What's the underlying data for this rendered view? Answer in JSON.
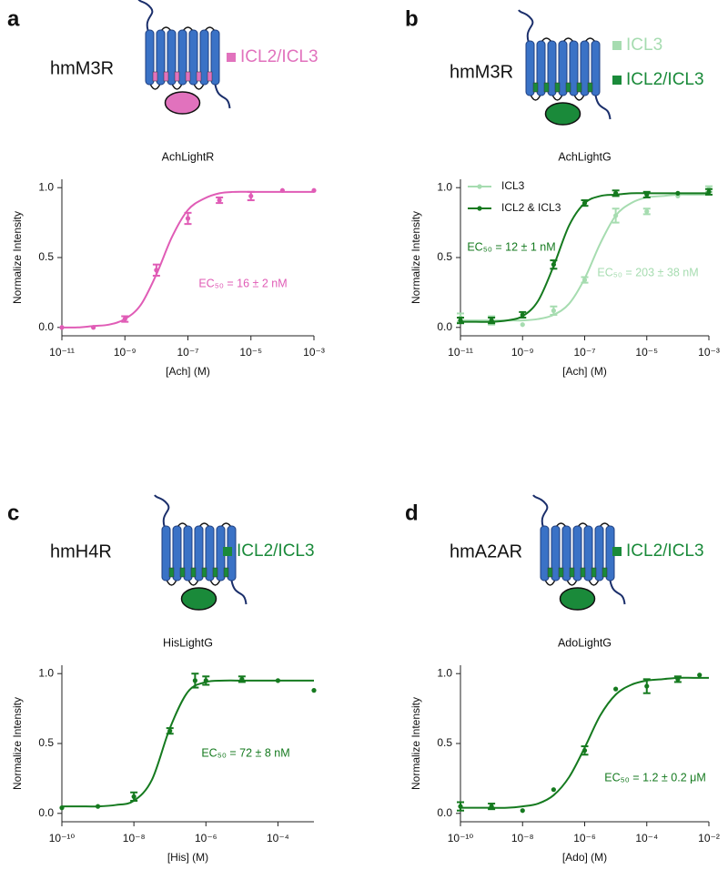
{
  "panels": [
    {
      "label": "a",
      "construct": "hmM3R",
      "diagram_legend": [
        {
          "label": "ICL2/ICL3",
          "color": "#e172bd"
        }
      ]
    },
    {
      "label": "b",
      "construct": "hmM3R",
      "diagram_legend": [
        {
          "label": "ICL3",
          "color": "#a6dcb0"
        },
        {
          "label": "ICL2/ICL3",
          "color": "#1a8a3a"
        }
      ]
    },
    {
      "label": "c",
      "construct": "hmH4R",
      "diagram_legend": [
        {
          "label": "ICL2/ICL3",
          "color": "#1a8a3a"
        }
      ]
    },
    {
      "label": "d",
      "construct": "hmA2AR",
      "diagram_legend": [
        {
          "label": "ICL2/ICL3",
          "color": "#1a8a3a"
        }
      ]
    }
  ],
  "chart_data": [
    {
      "type": "line",
      "title": "AchLightR",
      "xlabel": "[Ach] (M)",
      "ylabel": "Normalize Intensity",
      "log_x": true,
      "xlim": [
        1e-11,
        0.001
      ],
      "xticks": [
        {
          "value": 1e-11,
          "label": "10⁻¹¹"
        },
        {
          "value": 1e-09,
          "label": "10⁻⁹"
        },
        {
          "value": 1e-07,
          "label": "10⁻⁷"
        },
        {
          "value": 1e-05,
          "label": "10⁻⁵"
        },
        {
          "value": 0.001,
          "label": "10⁻³"
        }
      ],
      "ylim": [
        -0.06,
        1.06
      ],
      "yticks": [
        {
          "value": 0,
          "label": "0.0"
        },
        0.5,
        {
          "value": 1,
          "label": "1.0"
        }
      ],
      "series": [
        {
          "color": "#e05cb6",
          "x": [
            1e-11,
            1e-10,
            1e-09,
            1e-08,
            1e-07,
            1e-06,
            1e-05,
            0.0001,
            0.001
          ],
          "values": [
            0.0,
            0.0,
            0.06,
            0.41,
            0.78,
            0.91,
            0.94,
            0.98,
            0.98
          ],
          "errors": [
            null,
            null,
            0.02,
            0.04,
            0.04,
            0.02,
            0.03,
            null,
            null
          ],
          "fit_x": [
            1e-11,
            3.162e-11,
            1e-10,
            3.162e-10,
            1e-09,
            3.162e-09,
            1e-08,
            3.162e-08,
            1e-07,
            3.162e-07,
            1e-06,
            3.162e-06,
            1e-05,
            3.162e-05,
            0.0001,
            0.0003162,
            0.001
          ],
          "fit_values": [
            0.0,
            0.0,
            0.01,
            0.02,
            0.06,
            0.16,
            0.38,
            0.65,
            0.84,
            0.92,
            0.96,
            0.97,
            0.97,
            0.97,
            0.97,
            0.97,
            0.97
          ]
        }
      ],
      "annotations": [
        {
          "text": "EC₅₀ = 16 ± 2 nM",
          "color": "#e05cb6"
        }
      ]
    },
    {
      "type": "line",
      "title": "AchLightG",
      "xlabel": "[Ach] (M)",
      "ylabel": "Normalize Intensity",
      "log_x": true,
      "xlim": [
        1e-11,
        0.001
      ],
      "xticks": [
        {
          "value": 1e-11,
          "label": "10⁻¹¹"
        },
        {
          "value": 1e-09,
          "label": "10⁻⁹"
        },
        {
          "value": 1e-07,
          "label": "10⁻⁷"
        },
        {
          "value": 1e-05,
          "label": "10⁻⁵"
        },
        {
          "value": 0.001,
          "label": "10⁻³"
        }
      ],
      "ylim": [
        -0.06,
        1.06
      ],
      "yticks": [
        {
          "value": 0,
          "label": "0.0"
        },
        0.5,
        {
          "value": 1,
          "label": "1.0"
        }
      ],
      "legend": "upper left",
      "series": [
        {
          "name": "ICL3",
          "color": "#a6dcb0",
          "x": [
            1e-11,
            1e-10,
            1e-09,
            1e-08,
            1e-07,
            1e-06,
            1e-05,
            0.0001,
            0.001
          ],
          "values": [
            0.07,
            0.05,
            0.02,
            0.12,
            0.34,
            0.8,
            0.83,
            0.94,
            0.99
          ],
          "errors": [
            0.03,
            0.03,
            null,
            0.03,
            0.02,
            0.05,
            0.02,
            null,
            0.02
          ],
          "fit_x": [
            1e-11,
            3.162e-11,
            1e-10,
            3.162e-10,
            1e-09,
            3.162e-09,
            1e-08,
            3.162e-08,
            1e-07,
            3.162e-07,
            1e-06,
            3.162e-06,
            1e-05,
            3.162e-05,
            0.0001,
            0.0003162,
            0.001
          ],
          "fit_values": [
            0.05,
            0.05,
            0.05,
            0.05,
            0.05,
            0.06,
            0.09,
            0.17,
            0.35,
            0.6,
            0.8,
            0.89,
            0.93,
            0.94,
            0.95,
            0.95,
            0.95
          ]
        },
        {
          "name": "ICL2 & ICL3",
          "color": "#157a1f",
          "x": [
            1e-11,
            1e-10,
            1e-09,
            1e-08,
            1e-07,
            1e-06,
            1e-05,
            0.0001,
            0.001
          ],
          "values": [
            0.05,
            0.05,
            0.09,
            0.45,
            0.89,
            0.96,
            0.95,
            0.96,
            0.97
          ],
          "errors": [
            0.02,
            0.02,
            0.02,
            0.03,
            0.02,
            0.02,
            0.02,
            null,
            0.02
          ],
          "fit_x": [
            1e-11,
            3.162e-11,
            1e-10,
            3.162e-10,
            1e-09,
            3.162e-09,
            1e-08,
            3.162e-08,
            1e-07,
            3.162e-07,
            1e-06,
            3.162e-06,
            1e-05,
            3.162e-05,
            0.0001,
            0.0003162,
            0.001
          ],
          "fit_values": [
            0.04,
            0.04,
            0.04,
            0.05,
            0.08,
            0.19,
            0.44,
            0.73,
            0.89,
            0.94,
            0.95,
            0.96,
            0.96,
            0.96,
            0.96,
            0.96,
            0.96
          ]
        }
      ],
      "annotations": [
        {
          "text": "EC₅₀ = 12 ± 1 nM",
          "color": "#157a1f"
        },
        {
          "text": "EC₅₀ = 203 ± 38 nM",
          "color": "#a6dcb0"
        }
      ]
    },
    {
      "type": "line",
      "title": "HisLightG",
      "xlabel": "[His] (M)",
      "ylabel": "Normalize Intensity",
      "log_x": true,
      "xlim": [
        1e-10,
        0.001
      ],
      "xticks": [
        {
          "value": 1e-10,
          "label": "10⁻¹⁰"
        },
        {
          "value": 1e-08,
          "label": "10⁻⁸"
        },
        {
          "value": 1e-06,
          "label": "10⁻⁶"
        },
        {
          "value": 0.0001,
          "label": "10⁻⁴"
        }
      ],
      "ylim": [
        -0.06,
        1.06
      ],
      "yticks": [
        {
          "value": 0,
          "label": "0.0"
        },
        0.5,
        {
          "value": 1,
          "label": "1.0"
        }
      ],
      "series": [
        {
          "color": "#157a1f",
          "x": [
            1e-10,
            1e-09,
            1e-08,
            1e-07,
            5e-07,
            1e-06,
            1e-05,
            0.0001,
            0.001
          ],
          "values": [
            0.04,
            0.05,
            0.12,
            0.59,
            0.95,
            0.95,
            0.96,
            0.95,
            0.88
          ],
          "errors": [
            null,
            null,
            0.03,
            0.02,
            0.05,
            0.03,
            0.02,
            null,
            null
          ],
          "fit_x": [
            1e-10,
            3.162e-10,
            1e-09,
            3.162e-09,
            1e-08,
            3.162e-08,
            1e-07,
            3.162e-07,
            1e-06,
            3.162e-06,
            1e-05,
            3.162e-05,
            0.0001,
            0.0003162,
            0.001
          ],
          "fit_values": [
            0.05,
            0.05,
            0.05,
            0.06,
            0.09,
            0.24,
            0.61,
            0.87,
            0.94,
            0.95,
            0.95,
            0.95,
            0.95,
            0.95,
            0.95
          ]
        }
      ],
      "annotations": [
        {
          "text": "EC₅₀ = 72 ± 8 nM",
          "color": "#157a1f"
        }
      ]
    },
    {
      "type": "line",
      "title": "AdoLightG",
      "xlabel": "[Ado] (M)",
      "ylabel": "Normalize Intensity",
      "log_x": true,
      "xlim": [
        1e-10,
        0.01
      ],
      "xticks": [
        {
          "value": 1e-10,
          "label": "10⁻¹⁰"
        },
        {
          "value": 1e-08,
          "label": "10⁻⁸"
        },
        {
          "value": 1e-06,
          "label": "10⁻⁶"
        },
        {
          "value": 0.0001,
          "label": "10⁻⁴"
        },
        {
          "value": 0.01,
          "label": "10⁻²"
        }
      ],
      "ylim": [
        -0.06,
        1.06
      ],
      "yticks": [
        {
          "value": 0,
          "label": "0.0"
        },
        0.5,
        {
          "value": 1,
          "label": "1.0"
        }
      ],
      "series": [
        {
          "color": "#157a1f",
          "x": [
            1e-10,
            1e-09,
            1e-08,
            1e-07,
            1e-06,
            1e-05,
            0.0001,
            0.001,
            0.005
          ],
          "values": [
            0.05,
            0.05,
            0.02,
            0.17,
            0.45,
            0.89,
            0.91,
            0.96,
            0.99
          ],
          "errors": [
            0.03,
            0.02,
            null,
            null,
            0.03,
            null,
            0.05,
            0.02,
            null
          ],
          "fit_x": [
            1e-10,
            3.162e-10,
            1e-09,
            3.162e-09,
            1e-08,
            3.162e-08,
            1e-07,
            3.162e-07,
            1e-06,
            3.162e-06,
            1e-05,
            3.162e-05,
            0.0001,
            0.0003162,
            0.001,
            0.003162,
            0.01
          ],
          "fit_values": [
            0.04,
            0.04,
            0.04,
            0.04,
            0.05,
            0.07,
            0.13,
            0.26,
            0.47,
            0.7,
            0.85,
            0.92,
            0.95,
            0.96,
            0.97,
            0.97,
            0.97
          ]
        }
      ],
      "annotations": [
        {
          "text": "EC₅₀ = 1.2 ± 0.2 μM",
          "color": "#157a1f"
        }
      ]
    }
  ]
}
